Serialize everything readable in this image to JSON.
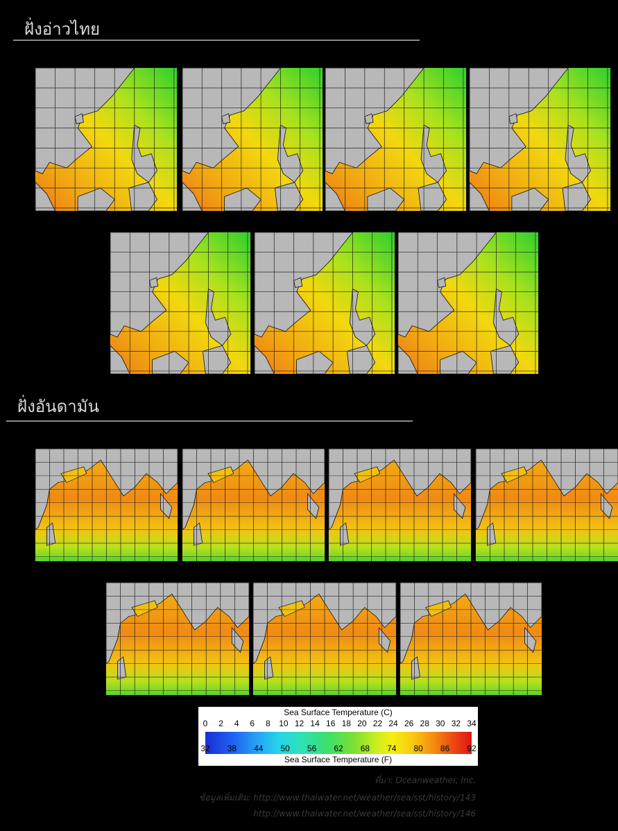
{
  "sections": {
    "gulf_title": "ฝั่งอ่าวไทย",
    "andaman_title": "ฝั่งอันดามัน"
  },
  "legend": {
    "title_c": "Sea Surface Temperature (C)",
    "title_f": "Sea Surface Temperature (F)",
    "celsius": [
      "0",
      "2",
      "4",
      "6",
      "8",
      "10",
      "12",
      "14",
      "16",
      "18",
      "20",
      "22",
      "24",
      "26",
      "28",
      "30",
      "32",
      "34"
    ],
    "fahrenheit": [
      "32",
      "38",
      "44",
      "50",
      "56",
      "62",
      "68",
      "74",
      "80",
      "86",
      "92"
    ]
  },
  "credits": {
    "source_label": "ที่มา:",
    "source_value": "Oceanweather, Inc.",
    "more_label": "ข้อมูลเพิ่มเติม:",
    "url_1": "http://www.thaiwater.net/weather/sea/sst/history/143",
    "url_2": "http://www.thaiwater.net/weather/sea/sst/history/146"
  }
}
